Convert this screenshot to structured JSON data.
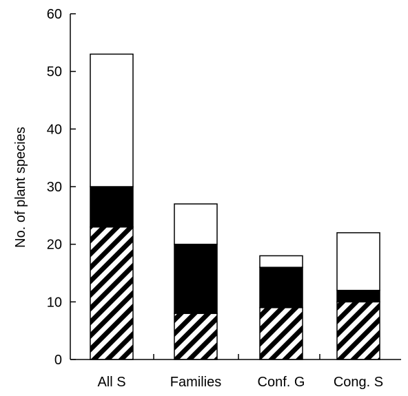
{
  "chart_data": {
    "type": "bar",
    "stacked": true,
    "title": "",
    "xlabel": "",
    "ylabel": "No. of plant species",
    "categories": [
      "All S",
      "Families",
      "Conf. G",
      "Cong. S"
    ],
    "ylim": [
      0,
      60
    ],
    "yticks": [
      0,
      10,
      20,
      30,
      40,
      50,
      60
    ],
    "grid": false,
    "series": [
      {
        "fill": "hatched",
        "values": [
          23,
          8,
          9,
          10
        ]
      },
      {
        "fill": "black",
        "values": [
          7,
          12,
          7,
          2
        ]
      },
      {
        "fill": "white",
        "values": [
          23,
          7,
          2,
          10
        ]
      }
    ],
    "colors": {
      "hatched": "#000000",
      "black": "#000000",
      "white": "#ffffff",
      "outline": "#000000"
    }
  }
}
